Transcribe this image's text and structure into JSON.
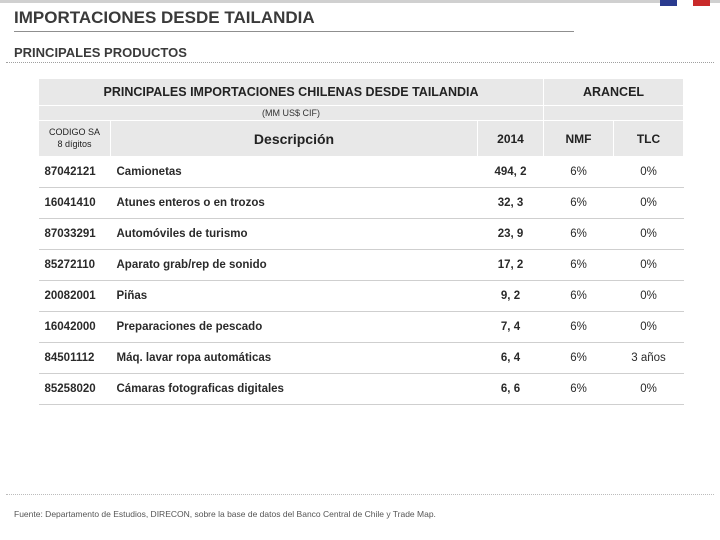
{
  "flag_colors": [
    "#2a3b8f",
    "#ffffff",
    "#c92a2a"
  ],
  "title": "IMPORTACIONES DESDE TAILANDIA",
  "subtitle": "PRINCIPALES PRODUCTOS",
  "table": {
    "header_main": "PRINCIPALES IMPORTACIONES CHILENAS DESDE TAILANDIA",
    "header_arancel": "ARANCEL",
    "header_unit": "(MM US$ CIF)",
    "col_codigo_line1": "CODIGO SA",
    "col_codigo_line2": "8 dígitos",
    "col_desc": "Descripción",
    "col_year": "2014",
    "col_nmf": "NMF",
    "col_tlc": "TLC",
    "rows": [
      {
        "code": "87042121",
        "desc": "Camionetas",
        "val": "494, 2",
        "nmf": "6%",
        "tlc": "0%"
      },
      {
        "code": "16041410",
        "desc": "Atunes enteros o en trozos",
        "val": "32, 3",
        "nmf": "6%",
        "tlc": "0%"
      },
      {
        "code": "87033291",
        "desc": "Automóviles de turismo",
        "val": "23, 9",
        "nmf": "6%",
        "tlc": "0%"
      },
      {
        "code": "85272110",
        "desc": "Aparato grab/rep de sonido",
        "val": "17, 2",
        "nmf": "6%",
        "tlc": "0%"
      },
      {
        "code": "20082001",
        "desc": "Piñas",
        "val": "9, 2",
        "nmf": "6%",
        "tlc": "0%"
      },
      {
        "code": "16042000",
        "desc": "Preparaciones de pescado",
        "val": "7, 4",
        "nmf": "6%",
        "tlc": "0%"
      },
      {
        "code": "84501112",
        "desc": "Máq. lavar ropa automáticas",
        "val": "6, 4",
        "nmf": "6%",
        "tlc": "3 años"
      },
      {
        "code": "85258020",
        "desc": "Cámaras fotograficas digitales",
        "val": "6, 6",
        "nmf": "6%",
        "tlc": "0%"
      }
    ]
  },
  "source": "Fuente: Departamento de Estudios, DIRECON, sobre la base de datos del Banco Central de Chile y Trade Map."
}
